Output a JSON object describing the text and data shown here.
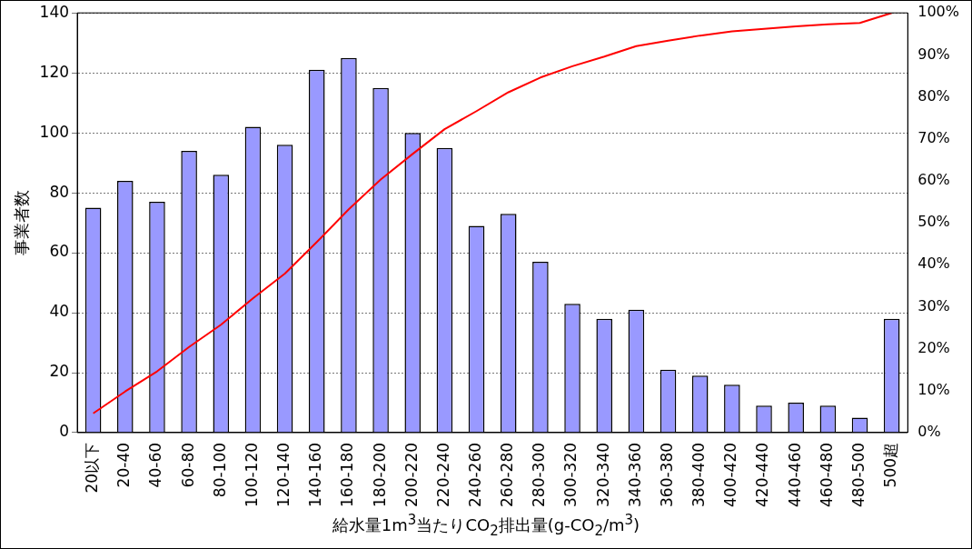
{
  "chart_data": {
    "type": "bar",
    "xlabel": "給水量1m$^{3}$当たりCO$_{2}$排出量(g-CO$_{2}$/m$^{3}$)",
    "ylabel": "事業者数",
    "categories": [
      "20以下",
      "20-40",
      "40-60",
      "60-80",
      "80-100",
      "100-120",
      "120-140",
      "140-160",
      "160-180",
      "180-200",
      "200-220",
      "220-240",
      "240-260",
      "260-280",
      "280-300",
      "300-320",
      "320-340",
      "340-360",
      "360-380",
      "380-400",
      "400-420",
      "420-440",
      "440-460",
      "460-480",
      "480-500",
      "500超"
    ],
    "series": [
      {
        "color": "#9999ff",
        "values": [
          75,
          84,
          77,
          94,
          86,
          102,
          96,
          121,
          125,
          115,
          100,
          95,
          69,
          73,
          57,
          43,
          38,
          41,
          21,
          19,
          16,
          9,
          10,
          9,
          5,
          38
        ]
      },
      {
        "type": "line",
        "axis": "y2",
        "color": "#ff0000",
        "marker": "none",
        "values": [
          4.6,
          9.8,
          14.6,
          20.4,
          25.7,
          32.0,
          37.9,
          45.4,
          53.2,
          60.3,
          66.4,
          72.3,
          76.6,
          81.1,
          84.6,
          87.3,
          89.6,
          92.1,
          93.4,
          94.6,
          95.6,
          96.2,
          96.8,
          97.3,
          97.6,
          100
        ]
      }
    ],
    "ylim": [
      0,
      140
    ],
    "yticks": [
      0,
      20,
      40,
      60,
      80,
      100,
      120,
      140
    ],
    "y2lim": [
      0,
      100
    ],
    "y2ticks": [
      {
        "value": 0,
        "label": "0%"
      },
      {
        "value": 10,
        "label": "10%"
      },
      {
        "value": 20,
        "label": "20%"
      },
      {
        "value": 30,
        "label": "30%"
      },
      {
        "value": 40,
        "label": "40%"
      },
      {
        "value": 50,
        "label": "50%"
      },
      {
        "value": 60,
        "label": "60%"
      },
      {
        "value": 70,
        "label": "70%"
      },
      {
        "value": 80,
        "label": "80%"
      },
      {
        "value": 90,
        "label": "90%"
      },
      {
        "value": 100,
        "label": "100%"
      }
    ],
    "grid": "y",
    "legend": false
  }
}
